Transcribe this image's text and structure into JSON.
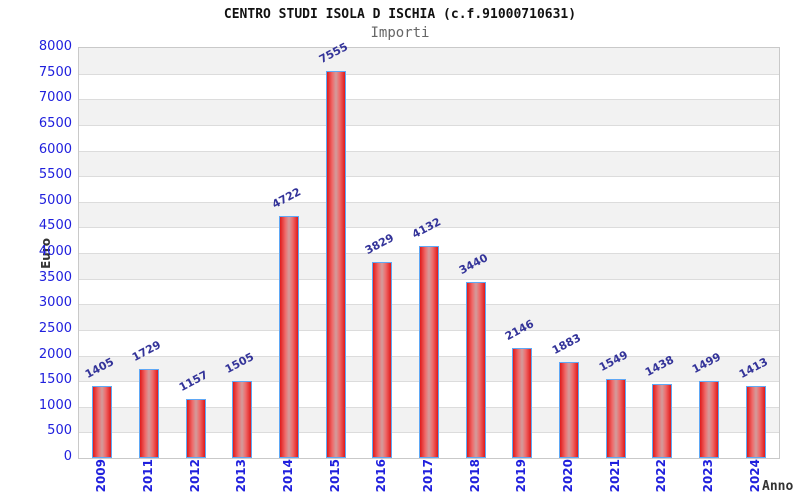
{
  "header": {
    "title": "CENTRO STUDI ISOLA D ISCHIA (c.f.91000710631)",
    "subtitle": "Importi"
  },
  "chart_data": {
    "type": "bar",
    "title": "CENTRO STUDI ISOLA D ISCHIA (c.f.91000710631)",
    "subtitle": "Importi",
    "xlabel": "Anno",
    "ylabel": "Euro",
    "categories": [
      "2009",
      "2011",
      "2012",
      "2013",
      "2014",
      "2015",
      "2016",
      "2017",
      "2018",
      "2019",
      "2020",
      "2021",
      "2022",
      "2023",
      "2024"
    ],
    "values": [
      1405,
      1729,
      1157,
      1505,
      4722,
      7555,
      3829,
      4132,
      3440,
      2146,
      1883,
      1549,
      1438,
      1499,
      1413
    ],
    "ylim": [
      0,
      8000
    ],
    "ytick_step": 500,
    "grid": true,
    "legend": false,
    "bands_alternating": true,
    "colors": {
      "bar_edge_red": "#e01a1a",
      "bar_light_red": "#ef6b6b",
      "bar_mid": "#d29c9c",
      "bar_border": "#5fa8f5",
      "axis_tick_text": "#2020dd",
      "data_label_text": "#333399",
      "band_gray": "#f2f2f2",
      "grid_line": "#dcdcdc",
      "plot_border": "#c9c9c9",
      "title_text": "#111111",
      "subtitle_text": "#666666",
      "axis_title_text": "#333333"
    }
  }
}
